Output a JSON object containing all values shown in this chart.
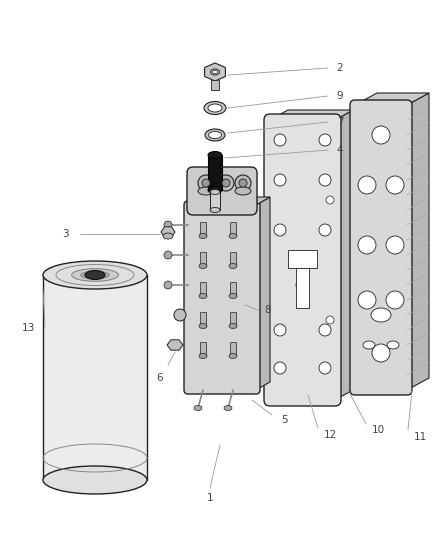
{
  "background_color": "#ffffff",
  "line_color": "#222222",
  "light_gray": "#d8d8d8",
  "mid_gray": "#b8b8b8",
  "dark_gray": "#888888",
  "black": "#111111"
}
